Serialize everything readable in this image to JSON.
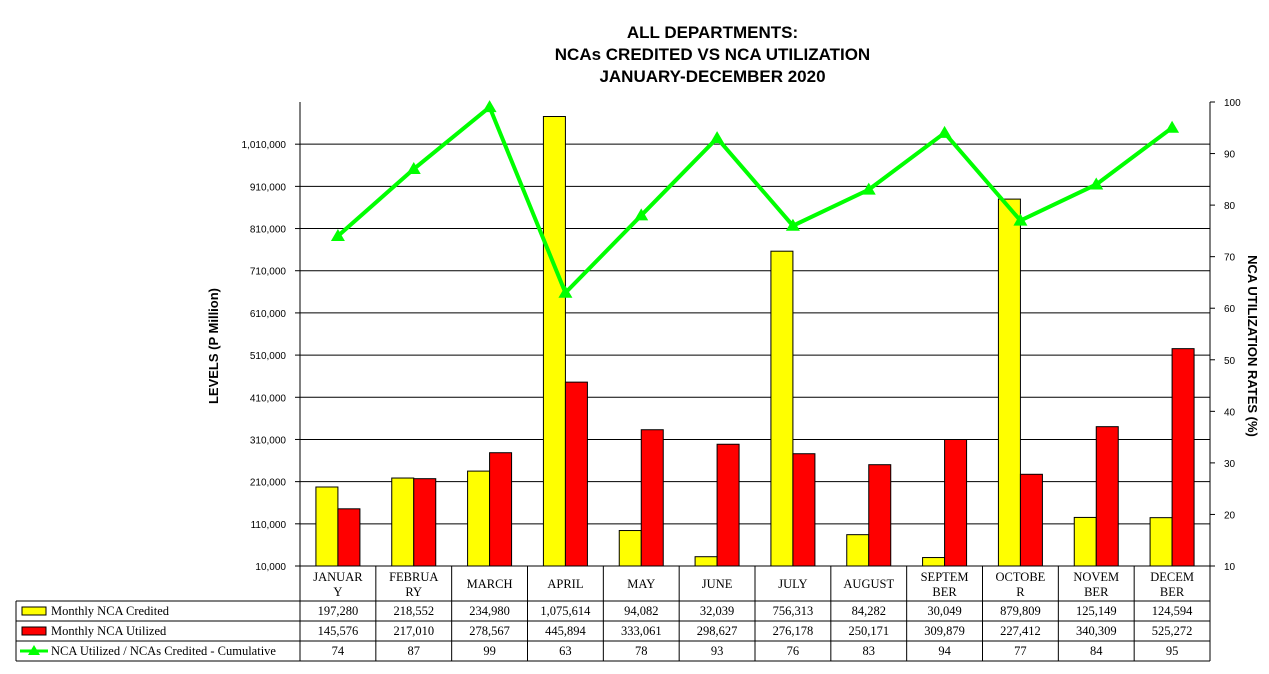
{
  "chart_data": {
    "type": "bar",
    "title": [
      "ALL DEPARTMENTS:",
      "NCAs CREDITED VS NCA UTILIZATION",
      "JANUARY-DECEMBER 2020"
    ],
    "ylabel": "LEVELS (P Million)",
    "y2label": "NCA UTILIZATION RATES (%)",
    "ylim": [
      10000,
      1110000
    ],
    "y2lim": [
      10,
      100
    ],
    "yticks": [
      "10,000",
      "110,000",
      "210,000",
      "310,000",
      "410,000",
      "510,000",
      "610,000",
      "710,000",
      "810,000",
      "910,000",
      "1,010,000"
    ],
    "y2ticks": [
      "10",
      "20",
      "30",
      "40",
      "50",
      "60",
      "70",
      "80",
      "90",
      "100"
    ],
    "categories": [
      "JANUAR\nY",
      "FEBRUA\nRY",
      "MARCH",
      "APRIL",
      "MAY",
      "JUNE",
      "JULY",
      "AUGUST",
      "SEPTEM\nBER",
      "OCTOBE\nR",
      "NOVEM\nBER",
      "DECEM\nBER"
    ],
    "series": [
      {
        "name": "Monthly NCA Credited",
        "kind": "bar",
        "axis": "left",
        "color": "#ffff00",
        "values": [
          197280,
          218552,
          234980,
          1075614,
          94082,
          32039,
          756313,
          84282,
          30049,
          879809,
          125149,
          124594
        ],
        "labels": [
          "197,280",
          "218,552",
          "234,980",
          "1,075,614",
          "94,082",
          "32,039",
          "756,313",
          "84,282",
          "30,049",
          "879,809",
          "125,149",
          "124,594"
        ]
      },
      {
        "name": "Monthly NCA Utilized",
        "kind": "bar",
        "axis": "left",
        "color": "#ff0000",
        "values": [
          145576,
          217010,
          278567,
          445894,
          333061,
          298627,
          276178,
          250171,
          309879,
          227412,
          340309,
          525272
        ],
        "labels": [
          "145,576",
          "217,010",
          "278,567",
          "445,894",
          "333,061",
          "298,627",
          "276,178",
          "250,171",
          "309,879",
          "227,412",
          "340,309",
          "525,272"
        ]
      },
      {
        "name": "NCA Utilized / NCAs Credited - Cumulative",
        "kind": "line",
        "axis": "right",
        "color": "#00ff00",
        "values": [
          74,
          87,
          99,
          63,
          78,
          93,
          76,
          83,
          94,
          77,
          84,
          95
        ],
        "labels": [
          "74",
          "87",
          "99",
          "63",
          "78",
          "93",
          "76",
          "83",
          "94",
          "77",
          "84",
          "95"
        ]
      }
    ],
    "grid": true,
    "legend": "data-table-below"
  }
}
